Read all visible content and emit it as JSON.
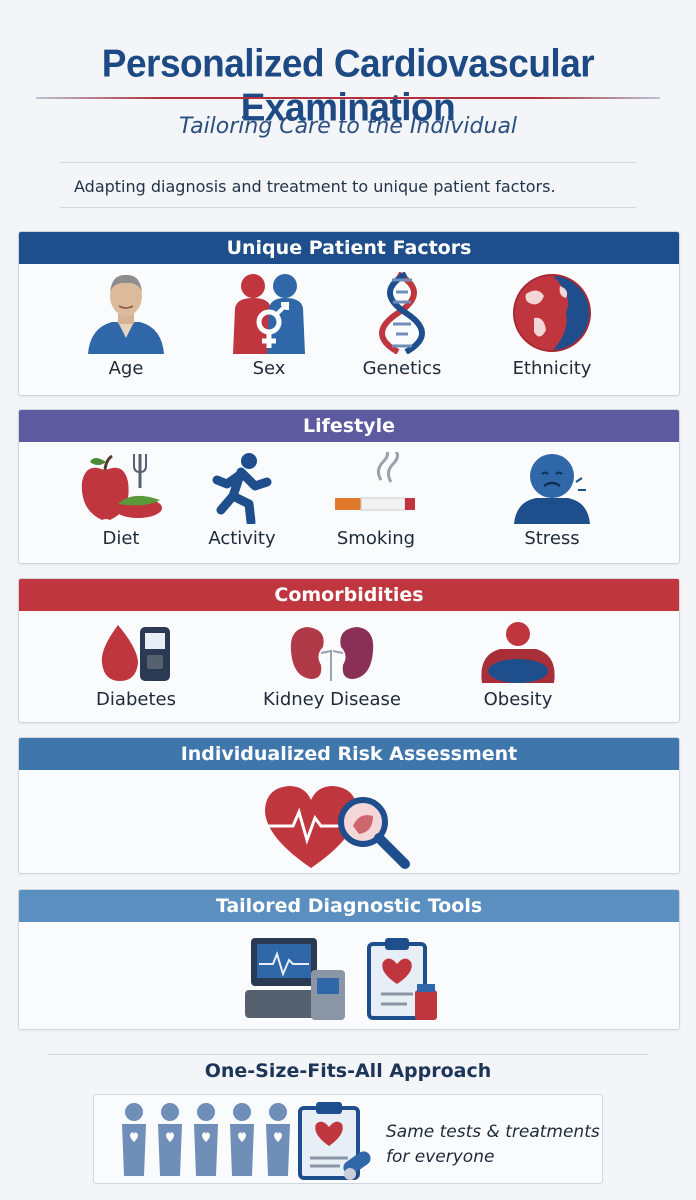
{
  "header": {
    "title": "Personalized Cardiovascular Examination",
    "subtitle": "Tailoring Care to the Individual",
    "tagline": "Adapting diagnosis and treatment to unique patient factors."
  },
  "sections": {
    "unique": {
      "title": "Unique Patient Factors",
      "color": "#1f4e8c",
      "items": [
        "Age",
        "Sex",
        "Genetics",
        "Ethnicity"
      ]
    },
    "lifestyle": {
      "title": "Lifestyle",
      "color": "#5e5aa0",
      "items": [
        "Diet",
        "Activity",
        "Smoking",
        "Stress"
      ]
    },
    "comorbidities": {
      "title": "Comorbidities",
      "color": "#c0363f",
      "items": [
        "Diabetes",
        "Kidney Disease",
        "Obesity"
      ]
    },
    "risk": {
      "title": "Individualized Risk Assessment",
      "color": "#3f77ad"
    },
    "tools": {
      "title": "Tailored Diagnostic Tools",
      "color": "#5a8fc0"
    }
  },
  "footer": {
    "title": "One-Size-Fits-All Approach",
    "line1": "Same tests & treatments",
    "line2": "for everyone"
  },
  "colors": {
    "navy": "#1d4a84",
    "red": "#c0363f",
    "purple": "#5e5aa0",
    "steel": "#3f77ad",
    "light_blue": "#5a8fc0"
  },
  "icons": [
    "elderly-man-icon",
    "gender-symbol-icon",
    "dna-icon",
    "globe-icon",
    "apple-plate-icon",
    "running-person-icon",
    "cigarette-icon",
    "stressed-person-icon",
    "blood-drop-glucometer-icon",
    "kidneys-icon",
    "obese-person-icon",
    "heart-magnifier-icon",
    "monitor-clipboard-icon",
    "people-row-icon",
    "clipboard-pills-icon"
  ]
}
